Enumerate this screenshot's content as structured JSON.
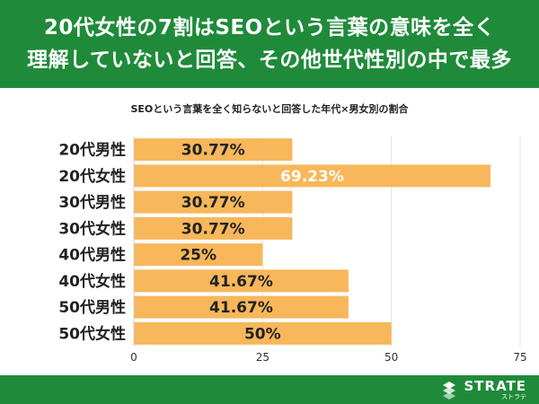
{
  "header": {
    "line1": "20代女性の7割はSEOという言葉の意味を全く",
    "line2": "理解していないと回答、その他世代性別の中で最多"
  },
  "chart_data": {
    "type": "bar",
    "orientation": "horizontal",
    "title": "SEOという言葉を全く知らないと回答した年代×男女別の割合",
    "categories": [
      "20代男性",
      "20代女性",
      "30代男性",
      "30代女性",
      "40代男性",
      "40代女性",
      "50代男性",
      "50代女性"
    ],
    "values": [
      30.77,
      69.23,
      30.77,
      30.77,
      25,
      41.67,
      41.67,
      50
    ],
    "value_labels": [
      "30.77%",
      "69.23%",
      "30.77%",
      "30.77%",
      "25%",
      "41.67%",
      "41.67%",
      "50%"
    ],
    "xlim": [
      0,
      75
    ],
    "xticks": [
      "0",
      "25",
      "50",
      "75"
    ],
    "grid": "vertical",
    "colors": {
      "bar": "#f7b75a",
      "label_dark": "#222222",
      "label_light": "#ffffff"
    }
  },
  "footer": {
    "logo_name": "STRATE",
    "logo_sub": "ストラテ"
  }
}
